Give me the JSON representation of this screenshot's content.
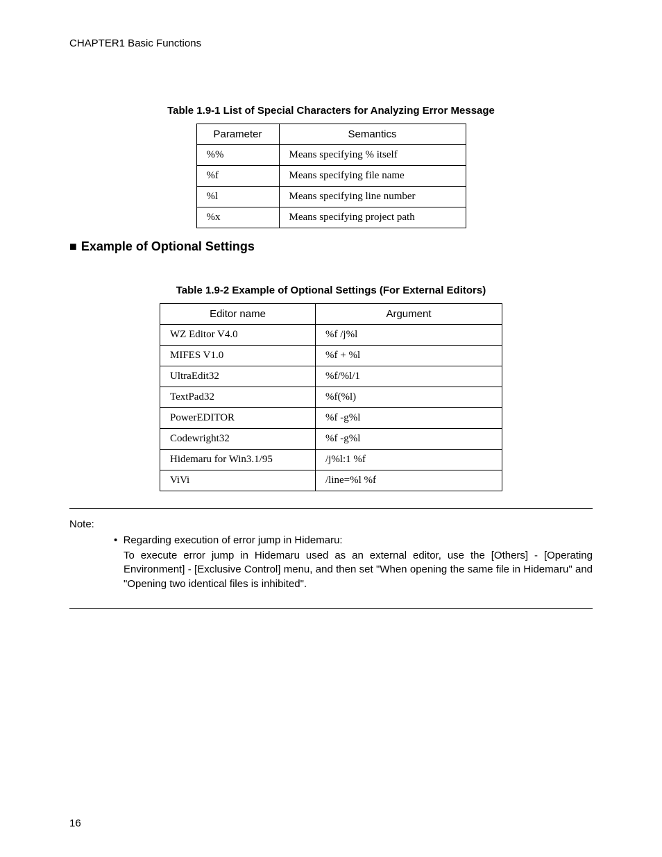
{
  "header": {
    "text": "CHAPTER1  Basic Functions"
  },
  "table1": {
    "caption": "Table 1.9-1  List of Special Characters for Analyzing Error Message",
    "headers": [
      "Parameter",
      "Semantics"
    ],
    "rows": [
      [
        "%%",
        "Means specifying % itself"
      ],
      [
        "%f",
        "Means specifying file name"
      ],
      [
        "%l",
        "Means specifying line number"
      ],
      [
        "%x",
        "Means specifying project path"
      ]
    ]
  },
  "section": {
    "heading": "Example of Optional Settings"
  },
  "table2": {
    "caption": "Table 1.9-2  Example of Optional Settings (For External Editors)",
    "headers": [
      "Editor name",
      "Argument"
    ],
    "rows": [
      [
        "WZ Editor V4.0",
        "%f /j%l"
      ],
      [
        "MIFES V1.0",
        "%f + %l"
      ],
      [
        "UltraEdit32",
        "%f/%l/1"
      ],
      [
        "TextPad32",
        "%f(%l)"
      ],
      [
        "PowerEDITOR",
        "%f -g%l"
      ],
      [
        "Codewright32",
        "%f -g%l"
      ],
      [
        "Hidemaru for Win3.1/95",
        "/j%l:1 %f"
      ],
      [
        "ViVi",
        "/line=%l %f"
      ]
    ]
  },
  "note": {
    "label": "Note:",
    "bullet": "Regarding execution of error jump in Hidemaru:",
    "body": "To execute error jump in Hidemaru used as an external editor, use the [Others] - [Operating Environment] - [Exclusive Control] menu, and then set \"When opening the same file in Hidemaru\" and \"Opening two identical files is inhibited\"."
  },
  "pageNumber": "16"
}
